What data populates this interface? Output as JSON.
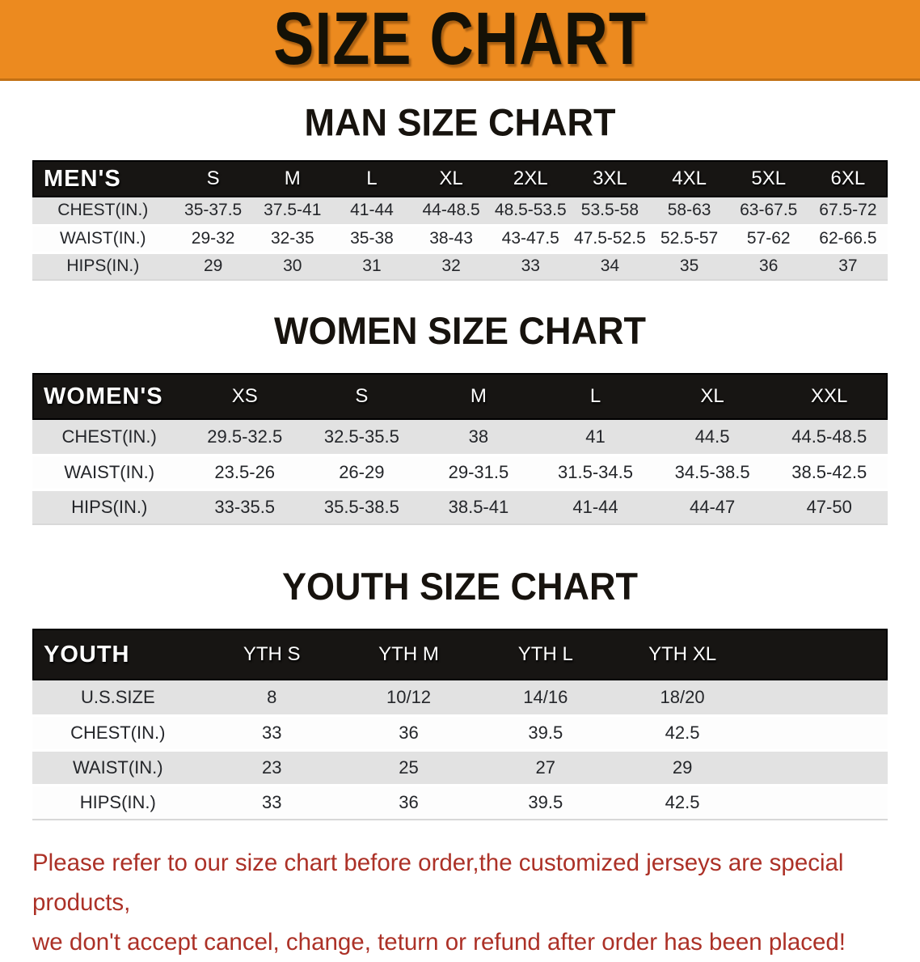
{
  "banner": {
    "title": "SIZE CHART",
    "bg_color": "#EC8A1F",
    "text_color": "#141106"
  },
  "sections": [
    {
      "heading": "MAN SIZE CHART",
      "table": {
        "header_label": "MEN'S",
        "columns": [
          "S",
          "M",
          "L",
          "XL",
          "2XL",
          "3XL",
          "4XL",
          "5XL",
          "6XL"
        ],
        "rows": [
          {
            "label": "CHEST(IN.)",
            "values": [
              "35-37.5",
              "37.5-41",
              "41-44",
              "44-48.5",
              "48.5-53.5",
              "53.5-58",
              "58-63",
              "63-67.5",
              "67.5-72"
            ]
          },
          {
            "label": "WAIST(IN.)",
            "values": [
              "29-32",
              "32-35",
              "35-38",
              "38-43",
              "43-47.5",
              "47.5-52.5",
              "52.5-57",
              "57-62",
              "62-66.5"
            ]
          },
          {
            "label": "HIPS(IN.)",
            "values": [
              "29",
              "30",
              "31",
              "32",
              "33",
              "34",
              "35",
              "36",
              "37"
            ]
          }
        ]
      }
    },
    {
      "heading": "WOMEN SIZE CHART",
      "table": {
        "header_label": "WOMEN'S",
        "columns": [
          "XS",
          "S",
          "M",
          "L",
          "XL",
          "XXL"
        ],
        "rows": [
          {
            "label": "CHEST(IN.)",
            "values": [
              "29.5-32.5",
              "32.5-35.5",
              "38",
              "41",
              "44.5",
              "44.5-48.5"
            ]
          },
          {
            "label": "WAIST(IN.)",
            "values": [
              "23.5-26",
              "26-29",
              "29-31.5",
              "31.5-34.5",
              "34.5-38.5",
              "38.5-42.5"
            ]
          },
          {
            "label": "HIPS(IN.)",
            "values": [
              "33-35.5",
              "35.5-38.5",
              "38.5-41",
              "41-44",
              "44-47",
              "47-50"
            ]
          }
        ]
      }
    },
    {
      "heading": "YOUTH SIZE CHART",
      "table": {
        "header_label": "YOUTH",
        "columns": [
          "YTH S",
          "YTH M",
          "YTH L",
          "YTH XL"
        ],
        "rows": [
          {
            "label": "U.S.SIZE",
            "values": [
              "8",
              "10/12",
              "14/16",
              "18/20"
            ]
          },
          {
            "label": "CHEST(IN.)",
            "values": [
              "33",
              "36",
              "39.5",
              "42.5"
            ]
          },
          {
            "label": "WAIST(IN.)",
            "values": [
              "23",
              "25",
              "27",
              "29"
            ]
          },
          {
            "label": "HIPS(IN.)",
            "values": [
              "33",
              "36",
              "39.5",
              "42.5"
            ]
          }
        ]
      }
    }
  ],
  "footer": {
    "line1": "Please refer to our size chart before order,the customized jerseys are special products,",
    "line2": "we don't accept cancel, change, teturn or refund after order has been placed!",
    "text_color": "#AC3127"
  }
}
